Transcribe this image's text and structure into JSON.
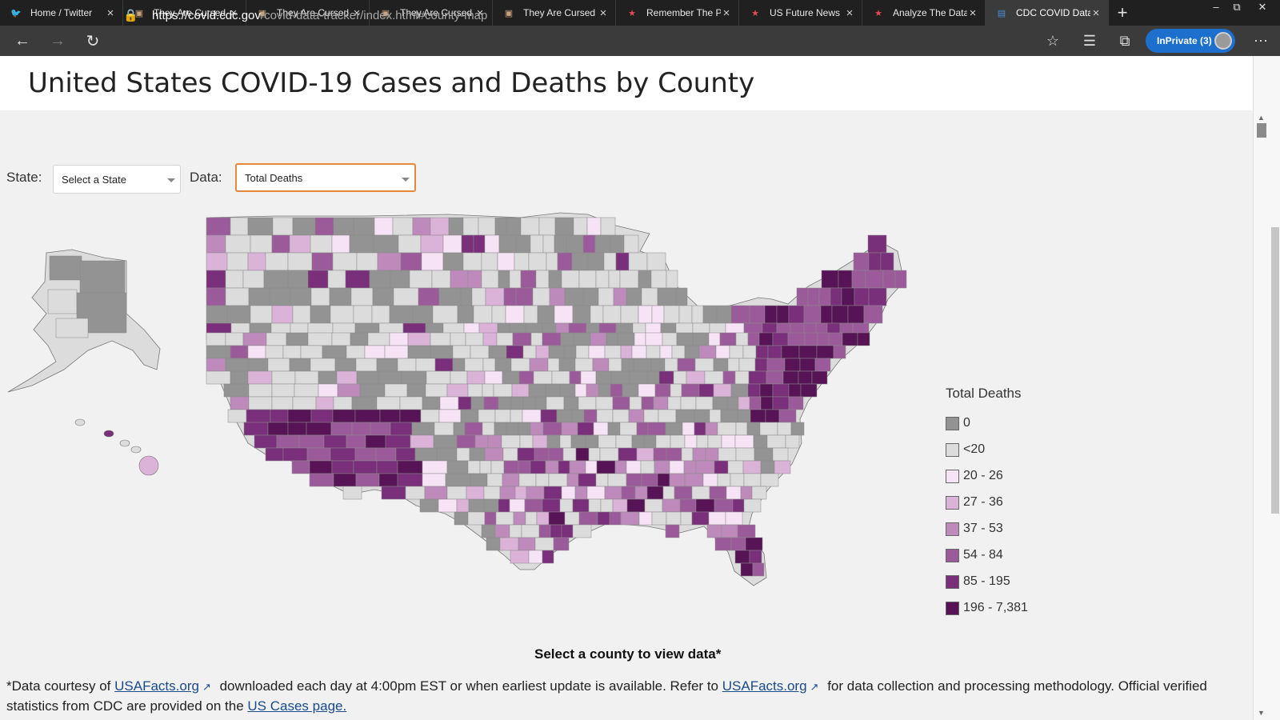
{
  "browser": {
    "tabs": [
      {
        "title": "Home / Twitter",
        "icon": "twitter-icon",
        "active": false
      },
      {
        "title": "They Are Cursed",
        "icon": "page-icon",
        "active": false
      },
      {
        "title": "They Are Cursed",
        "icon": "page-icon",
        "active": false
      },
      {
        "title": "They Are Cursed",
        "icon": "page-icon",
        "active": false
      },
      {
        "title": "They Are Cursed",
        "icon": "page-icon",
        "active": false
      },
      {
        "title": "Remember The P",
        "icon": "star-icon",
        "active": false
      },
      {
        "title": "US Future News",
        "icon": "star-icon",
        "active": false
      },
      {
        "title": "Analyze The Data",
        "icon": "star-icon",
        "active": false
      },
      {
        "title": "CDC COVID Data",
        "icon": "cdc-icon",
        "active": true
      }
    ],
    "url_host": "https://covid.cdc.gov",
    "url_path": "/covid-data-tracker/index.html#county-map",
    "inprivate_label": "InPrivate (3)"
  },
  "page": {
    "title": "United States COVID-19 Cases and Deaths by County",
    "state_label": "State:",
    "state_value": "Select a State",
    "data_label": "Data:",
    "data_value": "Total Deaths",
    "select_prompt": "Select a county to view data*",
    "footnote_pre": "*Data courtesy of",
    "footnote_link1": "USAFacts.org",
    "footnote_mid": "downloaded each day at 4:00pm EST or when earliest update is available. Refer to",
    "footnote_link2": "USAFacts.org",
    "footnote_post": "for data collection and processing methodology. Official verified statistics from CDC are provided on the",
    "footnote_link3": "US Cases page."
  },
  "legend": {
    "title": "Total Deaths",
    "items": [
      {
        "label": "0",
        "color": "#939393"
      },
      {
        "label": "<20",
        "color": "#dcdcdc"
      },
      {
        "label": "20 - 26",
        "color": "#f6e3f5"
      },
      {
        "label": "27 - 36",
        "color": "#dbb3d9"
      },
      {
        "label": "37 - 53",
        "color": "#be8abc"
      },
      {
        "label": "54 - 84",
        "color": "#9b5b9a"
      },
      {
        "label": "85 - 195",
        "color": "#7a2f7a"
      },
      {
        "label": "196 - 7,381",
        "color": "#561456"
      }
    ]
  }
}
